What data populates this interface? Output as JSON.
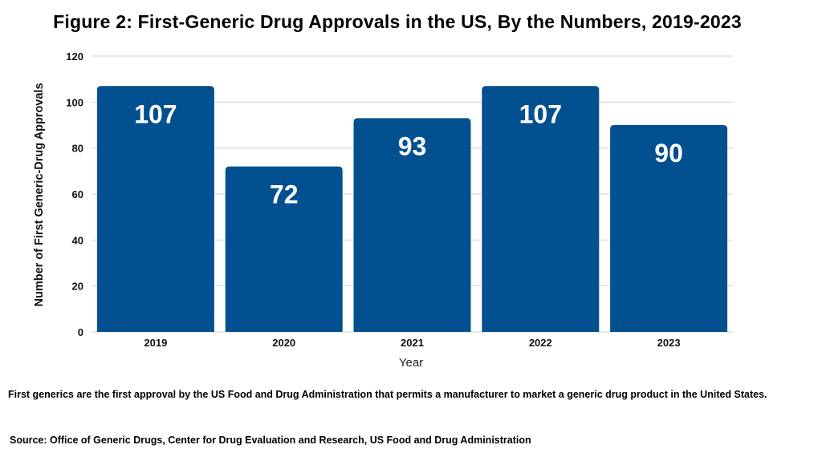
{
  "chart_data": {
    "type": "bar",
    "title": "Figure 2: First-Generic Drug Approvals in the US, By the Numbers, 2019-2023",
    "xlabel": "Year",
    "ylabel": "Number of First Generic-Drug Approvals",
    "categories": [
      "2019",
      "2020",
      "2021",
      "2022",
      "2023"
    ],
    "values": [
      107,
      72,
      93,
      107,
      90
    ],
    "data_labels": [
      "107",
      "72",
      "93",
      "107",
      "90"
    ],
    "ylim": [
      0,
      120
    ],
    "yticks": [
      "0",
      "20",
      "40",
      "60",
      "80",
      "100",
      "120"
    ],
    "grid": true,
    "legend": "none",
    "bar_color": "#02508f"
  },
  "footnote": "First generics are the first approval by the US Food and Drug Administration that permits a manufacturer to market a generic drug product in the United States.",
  "source": "Source: Office of Generic Drugs, Center for Drug Evaluation and Research, US Food and Drug Administration"
}
